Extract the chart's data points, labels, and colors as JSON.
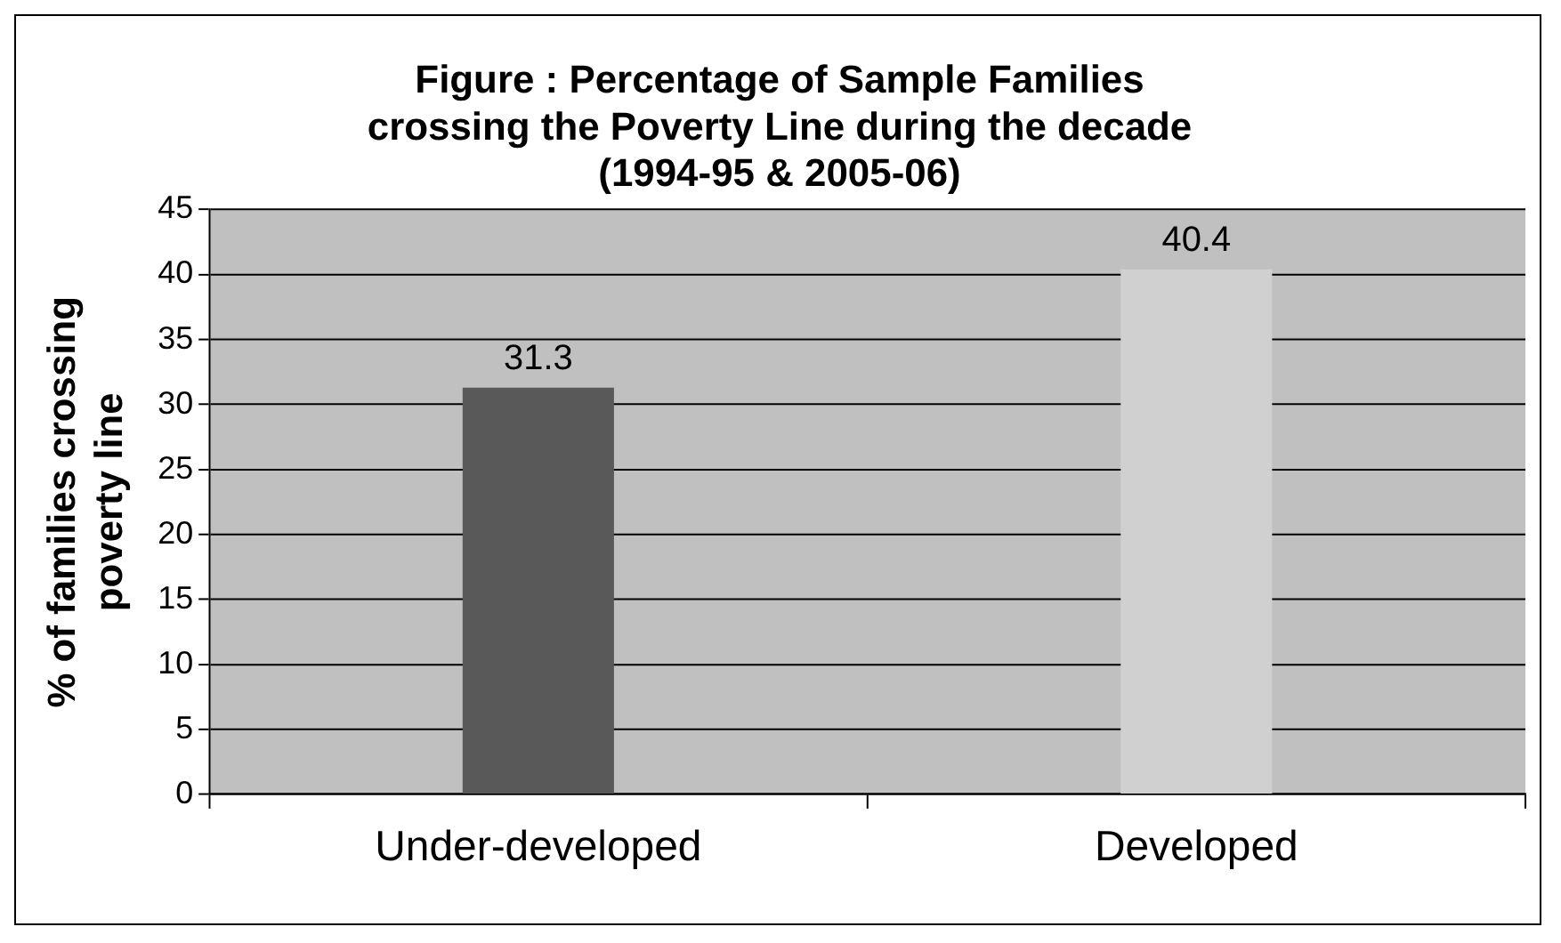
{
  "chart_data": {
    "type": "bar",
    "title": "Figure : Percentage of Sample Families\ncrossing the Poverty Line during the decade\n(1994-95 & 2005-06)",
    "ylabel": "% of families crossing\npoverty line",
    "categories": [
      "Under-developed",
      "Developed"
    ],
    "values": [
      31.3,
      40.4
    ],
    "colors": [
      "#595959",
      "#d0d0d0"
    ],
    "ylim": [
      0,
      45
    ],
    "yticks": [
      0,
      5,
      10,
      15,
      20,
      25,
      30,
      35,
      40,
      45
    ],
    "grid": "y",
    "data_labels": true,
    "legend": false
  }
}
